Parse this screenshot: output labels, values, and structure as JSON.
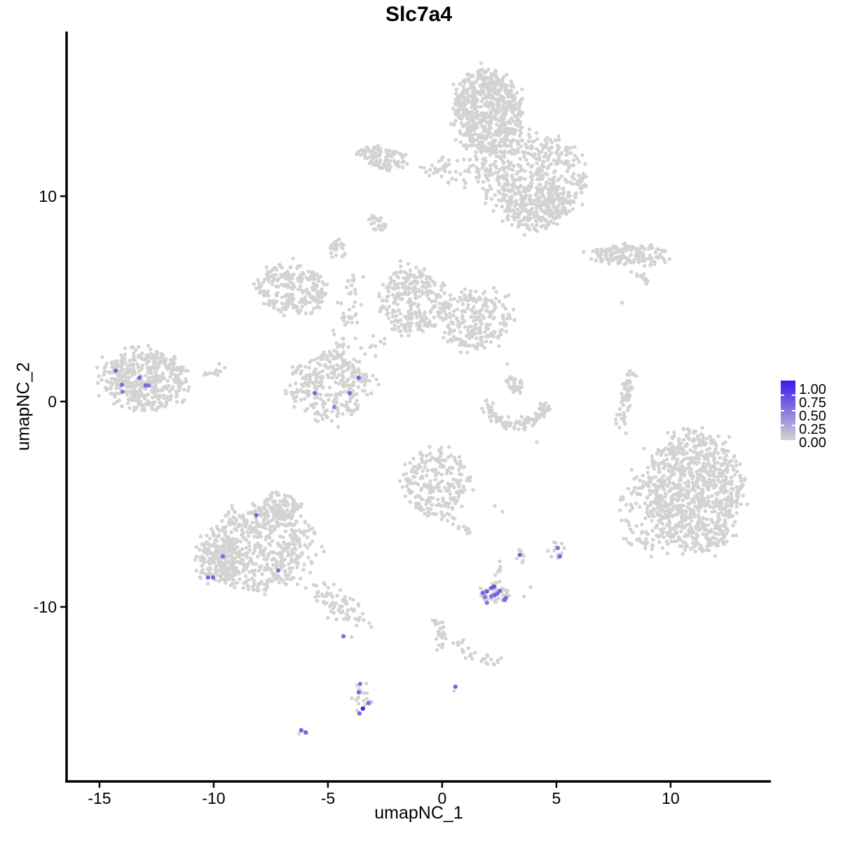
{
  "chart_data": {
    "type": "scatter",
    "title": "Slc7a4",
    "xlabel": "umapNC_1",
    "ylabel": "umapNC_2",
    "xlim": [
      -16.44,
      14.39
    ],
    "ylim": [
      -18.5,
      18.02
    ],
    "x_ticks": [
      "-15",
      "-10",
      "-5",
      "0",
      "5",
      "10"
    ],
    "x_tick_values": [
      -15,
      -10,
      -5,
      0,
      5,
      10
    ],
    "y_ticks": [
      "10",
      "0",
      "-10"
    ],
    "y_tick_values": [
      10,
      0,
      -10
    ],
    "grid": false,
    "legend": {
      "position": "right",
      "labels": [
        "1.00",
        "0.75",
        "0.50",
        "0.25",
        "0.00"
      ],
      "values": [
        1,
        0.75,
        0.5,
        0.25,
        0
      ]
    },
    "colors": {
      "low": "#D3D3D3",
      "high": "#381AEC",
      "axis": "#000000"
    },
    "background_cells": {
      "point_color": "#D3D3D3",
      "clusters": [
        {
          "shape": "blob",
          "cx": 1.96,
          "cy": 14.1,
          "rx": 1.47,
          "ry": 1.98,
          "rot": 0,
          "n": 650
        },
        {
          "shape": "blob",
          "cx": 3.96,
          "cy": 10.96,
          "rx": 2.21,
          "ry": 2.12,
          "rot": -25,
          "n": 520
        },
        {
          "shape": "blob",
          "cx": 4.2,
          "cy": 9.32,
          "rx": 1.38,
          "ry": 0.96,
          "rot": 20,
          "n": 170
        },
        {
          "shape": "blob",
          "cx": 0.89,
          "cy": 11.19,
          "rx": 1.23,
          "ry": 0.85,
          "rot": 0,
          "n": 45
        },
        {
          "shape": "strand",
          "pts": [
            [
              -0.95,
              11.26
            ],
            [
              0.52,
              11.37
            ]
          ],
          "jitter": 0.15,
          "n": 16
        },
        {
          "shape": "blob",
          "cx": -2.55,
          "cy": 11.84,
          "rx": 0.92,
          "ry": 0.55,
          "rot": -10,
          "n": 90
        },
        {
          "shape": "blob",
          "cx": -3.37,
          "cy": 12.08,
          "rx": 0.31,
          "ry": 0.27,
          "rot": 0,
          "n": 18
        },
        {
          "shape": "blob",
          "cx": -2.88,
          "cy": 8.7,
          "rx": 0.34,
          "ry": 0.44,
          "rot": 45,
          "n": 22
        },
        {
          "shape": "blob",
          "cx": -4.57,
          "cy": 7.37,
          "rx": 0.37,
          "ry": 0.51,
          "rot": 0,
          "n": 26
        },
        {
          "shape": "blob",
          "cx": 8.25,
          "cy": 7.13,
          "rx": 1.78,
          "ry": 0.51,
          "rot": -4,
          "n": 160
        },
        {
          "shape": "strand",
          "pts": [
            [
              8.4,
              6.42
            ],
            [
              9.02,
              5.73
            ]
          ],
          "jitter": 0.1,
          "n": 12
        },
        {
          "shape": "blob",
          "cx": -6.6,
          "cy": 5.49,
          "rx": 1.53,
          "ry": 1.16,
          "rot": -15,
          "n": 230
        },
        {
          "shape": "strand",
          "pts": [
            [
              -3.9,
              6.18
            ],
            [
              -4.11,
              4.03
            ],
            [
              -4.69,
              1.71
            ]
          ],
          "jitter": 0.25,
          "n": 55
        },
        {
          "shape": "blob",
          "cx": -1.26,
          "cy": 4.95,
          "rx": 1.47,
          "ry": 1.64,
          "rot": 0,
          "n": 260
        },
        {
          "shape": "blob",
          "cx": 1.44,
          "cy": 4.03,
          "rx": 1.6,
          "ry": 1.43,
          "rot": 15,
          "n": 240
        },
        {
          "shape": "strand",
          "pts": [
            [
              -3.1,
              2.49
            ],
            [
              -0.64,
              4.03
            ]
          ],
          "jitter": 0.22,
          "n": 25
        },
        {
          "shape": "strand",
          "pts": [
            [
              -4.63,
              1.81
            ],
            [
              -2.64,
              0.61
            ]
          ],
          "jitter": 0.2,
          "n": 18
        },
        {
          "shape": "arc",
          "cx": 3.25,
          "cy": 0.17,
          "r": 1.3,
          "a0": 185,
          "a1": 355,
          "jitter": 0.16,
          "n": 115
        },
        {
          "shape": "blob",
          "cx": 3.13,
          "cy": 0.82,
          "rx": 0.43,
          "ry": 0.41,
          "rot": 0,
          "n": 30
        },
        {
          "shape": "strand",
          "pts": [
            [
              8.31,
              1.47
            ],
            [
              8.1,
              0.27
            ],
            [
              7.82,
              -0.92
            ]
          ],
          "jitter": 0.13,
          "n": 60
        },
        {
          "shape": "blob",
          "cx": -13.07,
          "cy": 1.13,
          "rx": 1.9,
          "ry": 1.43,
          "rot": -8,
          "n": 450
        },
        {
          "shape": "strand",
          "pts": [
            [
              -10.4,
              1.4
            ],
            [
              -9.51,
              1.54
            ]
          ],
          "jitter": 0.12,
          "n": 14
        },
        {
          "shape": "blob",
          "cx": -4.94,
          "cy": 0.78,
          "rx": 1.69,
          "ry": 1.64,
          "rot": 0,
          "n": 280
        },
        {
          "shape": "blob",
          "cx": 11.07,
          "cy": -4.33,
          "rx": 2.02,
          "ry": 2.94,
          "rot": 0,
          "n": 850
        },
        {
          "shape": "blob",
          "cx": 9.17,
          "cy": -5.36,
          "rx": 1.38,
          "ry": 2.05,
          "rot": 0,
          "n": 150
        },
        {
          "shape": "blob",
          "cx": -0.31,
          "cy": -3.99,
          "rx": 1.47,
          "ry": 1.57,
          "rot": 0,
          "n": 230
        },
        {
          "shape": "strand",
          "pts": [
            [
              0.28,
              -5.7
            ],
            [
              1.26,
              -6.45
            ]
          ],
          "jitter": 0.15,
          "n": 12
        },
        {
          "shape": "blob",
          "cx": -7.94,
          "cy": -7.13,
          "rx": 2.33,
          "ry": 2.12,
          "rot": 0,
          "n": 520
        },
        {
          "shape": "blob",
          "cx": -7.15,
          "cy": -5.19,
          "rx": 0.92,
          "ry": 0.75,
          "rot": 0,
          "n": 110
        },
        {
          "shape": "blob",
          "cx": -9.85,
          "cy": -7.75,
          "rx": 0.92,
          "ry": 1.19,
          "rot": 0,
          "n": 140
        },
        {
          "shape": "strand",
          "pts": [
            [
              -5.55,
              -9.11
            ],
            [
              -3.56,
              -10.55
            ]
          ],
          "jitter": 0.3,
          "n": 70
        },
        {
          "shape": "blob",
          "cx": 2.33,
          "cy": -9.35,
          "rx": 0.74,
          "ry": 0.51,
          "rot": 0,
          "n": 45
        },
        {
          "shape": "strand",
          "pts": [
            [
              2.55,
              -7.75
            ],
            [
              2.42,
              -8.84
            ]
          ],
          "jitter": 0.08,
          "n": 8
        },
        {
          "shape": "blob",
          "cx": 3.37,
          "cy": -7.54,
          "rx": 0.25,
          "ry": 0.38,
          "rot": 0,
          "n": 8
        },
        {
          "shape": "blob",
          "cx": 5.03,
          "cy": -7.24,
          "rx": 0.31,
          "ry": 0.44,
          "rot": 0,
          "n": 12
        },
        {
          "shape": "strand",
          "pts": [
            [
              -0.28,
              -10.61
            ],
            [
              -0.03,
              -11.33
            ],
            [
              -0.18,
              -12.12
            ]
          ],
          "jitter": 0.12,
          "n": 28
        },
        {
          "shape": "strand",
          "pts": [
            [
              0.43,
              -11.77
            ],
            [
              1.13,
              -11.77
            ]
          ],
          "jitter": 0.06,
          "n": 6
        },
        {
          "shape": "strand",
          "pts": [
            [
              0.74,
              -12.18
            ],
            [
              2.58,
              -12.8
            ]
          ],
          "jitter": 0.12,
          "n": 22
        },
        {
          "shape": "blob",
          "cx": -3.5,
          "cy": -14.4,
          "rx": 0.4,
          "ry": 0.85,
          "rot": 0,
          "n": 22
        }
      ],
      "singles": [
        [
          4.63,
          -7.27
        ],
        [
          -3.96,
          -11.47
        ],
        [
          -3.65,
          -10.61
        ],
        [
          -3.19,
          -10.78
        ],
        [
          -4.63,
          -10.61
        ],
        [
          2.3,
          -5.08
        ],
        [
          2.64,
          -5.36
        ],
        [
          2.48,
          2.7
        ],
        [
          2.85,
          1.84
        ],
        [
          4.14,
          -1.98
        ],
        [
          8.83,
          -2.29
        ],
        [
          7.88,
          4.81
        ],
        [
          0.52,
          -14.1
        ],
        [
          -6.26,
          -16.18
        ],
        [
          -5.92,
          -16.14
        ],
        [
          3.59,
          -9.49
        ],
        [
          3.87,
          -9.04
        ],
        [
          7.76,
          -1.26
        ],
        [
          8.04,
          -1.54
        ]
      ]
    },
    "expressing_cells": [
      {
        "x": -14.29,
        "y": 1.5,
        "value": 0.6
      },
      {
        "x": -14.02,
        "y": 0.82,
        "value": 0.55
      },
      {
        "x": -13.99,
        "y": 0.48,
        "value": 0.5
      },
      {
        "x": -13.25,
        "y": 1.16,
        "value": 0.6
      },
      {
        "x": -12.98,
        "y": 0.78,
        "value": 0.6
      },
      {
        "x": -12.85,
        "y": 0.78,
        "value": 0.55
      },
      {
        "x": -5.58,
        "y": 0.41,
        "value": 0.6
      },
      {
        "x": -4.05,
        "y": 0.41,
        "value": 0.55
      },
      {
        "x": -3.65,
        "y": 1.16,
        "value": 0.6
      },
      {
        "x": -4.72,
        "y": -0.27,
        "value": 0.45
      },
      {
        "x": -8.13,
        "y": -5.53,
        "value": 0.6
      },
      {
        "x": -9.6,
        "y": -7.54,
        "value": 0.55
      },
      {
        "x": -10.25,
        "y": -8.57,
        "value": 0.6
      },
      {
        "x": -10.03,
        "y": -8.57,
        "value": 0.6
      },
      {
        "x": -7.18,
        "y": -8.23,
        "value": 0.55
      },
      {
        "x": 3.4,
        "y": -7.47,
        "value": 0.6
      },
      {
        "x": 5.06,
        "y": -7.13,
        "value": 0.55
      },
      {
        "x": 5.15,
        "y": -7.54,
        "value": 0.6
      },
      {
        "x": 1.78,
        "y": -9.32,
        "value": 0.6
      },
      {
        "x": 1.96,
        "y": -9.25,
        "value": 0.65
      },
      {
        "x": 2.15,
        "y": -9.08,
        "value": 0.6
      },
      {
        "x": 2.27,
        "y": -9.01,
        "value": 0.7
      },
      {
        "x": 2.3,
        "y": -9.42,
        "value": 0.6
      },
      {
        "x": 2.15,
        "y": -9.49,
        "value": 0.55
      },
      {
        "x": 2.42,
        "y": -9.35,
        "value": 0.6
      },
      {
        "x": 1.96,
        "y": -9.8,
        "value": 0.5
      },
      {
        "x": 2.73,
        "y": -9.66,
        "value": 0.6
      },
      {
        "x": 2.79,
        "y": -9.56,
        "value": 0.55
      },
      {
        "x": 2.52,
        "y": -9.22,
        "value": 0.6
      },
      {
        "x": 1.87,
        "y": -9.52,
        "value": 0.5
      },
      {
        "x": -4.32,
        "y": -11.43,
        "value": 0.55
      },
      {
        "x": -3.59,
        "y": -13.75,
        "value": 0.55
      },
      {
        "x": -3.65,
        "y": -14.16,
        "value": 0.6
      },
      {
        "x": -3.22,
        "y": -14.68,
        "value": 0.55
      },
      {
        "x": -3.47,
        "y": -14.95,
        "value": 0.95
      },
      {
        "x": -3.62,
        "y": -15.19,
        "value": 0.6
      },
      {
        "x": 0.58,
        "y": -13.89,
        "value": 0.6
      },
      {
        "x": -6.17,
        "y": -16.01,
        "value": 0.6
      },
      {
        "x": -5.98,
        "y": -16.11,
        "value": 0.6
      }
    ]
  }
}
